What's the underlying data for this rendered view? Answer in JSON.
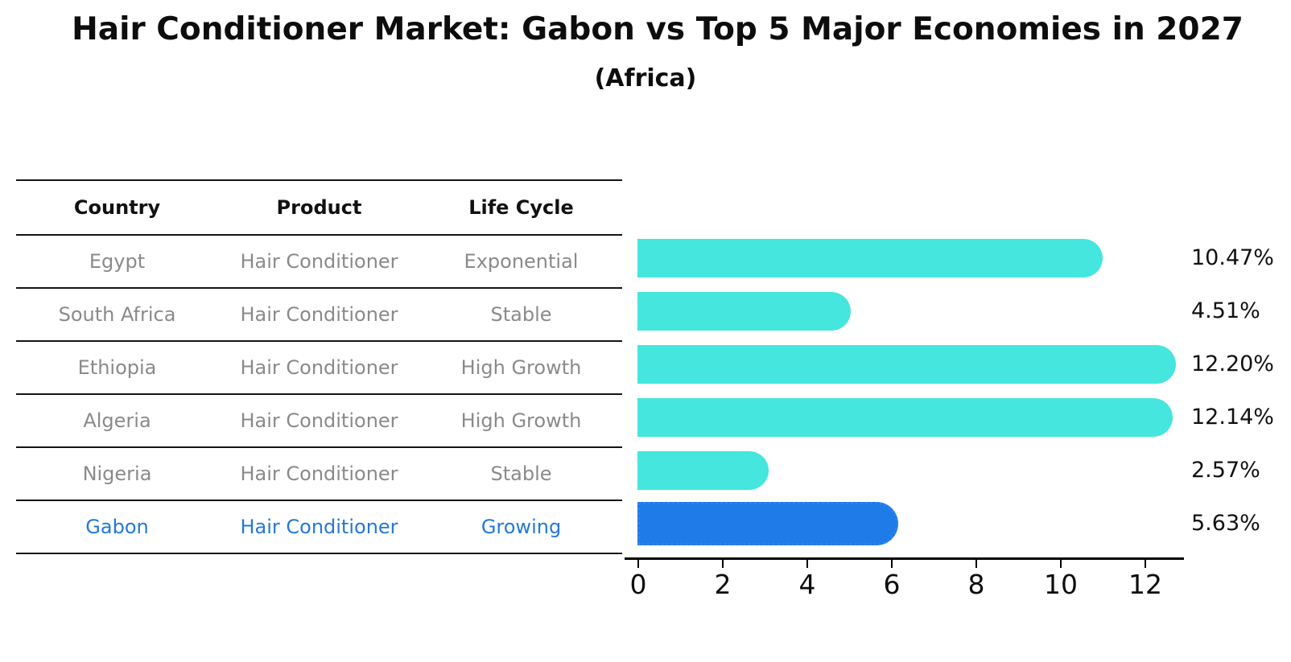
{
  "title": "Hair Conditioner Market: Gabon vs Top 5 Major Economies in 2027",
  "subtitle": "(Africa)",
  "table": {
    "headers": [
      "Country",
      "Product",
      "Life Cycle"
    ],
    "rows": [
      {
        "country": "Egypt",
        "product": "Hair Conditioner",
        "life_cycle": "Exponential",
        "highlighted": false
      },
      {
        "country": "South Africa",
        "product": "Hair Conditioner",
        "life_cycle": "Stable",
        "highlighted": false
      },
      {
        "country": "Ethiopia",
        "product": "Hair Conditioner",
        "life_cycle": "High Growth",
        "highlighted": false
      },
      {
        "country": "Algeria",
        "product": "Hair Conditioner",
        "life_cycle": "High Growth",
        "highlighted": false
      },
      {
        "country": "Nigeria",
        "product": "Hair Conditioner",
        "life_cycle": "Stable",
        "highlighted": false
      },
      {
        "country": "Gabon",
        "product": "Hair Conditioner",
        "life_cycle": "Growing",
        "highlighted": true
      }
    ]
  },
  "chart_data": {
    "type": "bar",
    "orientation": "horizontal",
    "title": "Hair Conditioner Market: Gabon vs Top 5 Major Economies in 2027",
    "subtitle": "(Africa)",
    "categories": [
      "Egypt",
      "South Africa",
      "Ethiopia",
      "Algeria",
      "Nigeria",
      "Gabon"
    ],
    "values": [
      10.47,
      4.51,
      12.2,
      12.14,
      2.57,
      5.63
    ],
    "value_labels": [
      "10.47%",
      "4.51%",
      "12.20%",
      "12.14%",
      "2.57%",
      "5.63%"
    ],
    "xticks": [
      0,
      2,
      4,
      6,
      8,
      10,
      12
    ],
    "xlim": [
      0,
      12.9
    ],
    "grid": false,
    "legend_position": "none",
    "highlight_index": 5
  },
  "colors": {
    "bar": "#44E6DE",
    "highlight_bar": "#1E7BE8",
    "highlight_text": "#2478D8",
    "row_text": "#8A8A8A",
    "header_text": "#111111",
    "axis": "#000000"
  }
}
